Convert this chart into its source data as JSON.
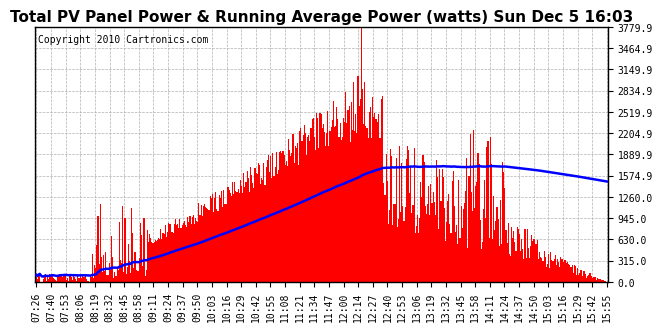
{
  "title": "Total PV Panel Power & Running Average Power (watts) Sun Dec 5 16:03",
  "copyright": "Copyright 2010 Cartronics.com",
  "yticks": [
    0.0,
    315.0,
    630.0,
    945.0,
    1260.0,
    1574.9,
    1889.9,
    2204.9,
    2519.9,
    2834.9,
    3149.9,
    3464.9,
    3779.9
  ],
  "ymax": 3779.9,
  "ymin": 0.0,
  "bg_color": "#ffffff",
  "fill_color": "#ff0000",
  "line_color": "#0000ff",
  "grid_color": "#b0b0b0",
  "title_fontsize": 11,
  "copyright_fontsize": 7,
  "tick_fontsize": 7
}
